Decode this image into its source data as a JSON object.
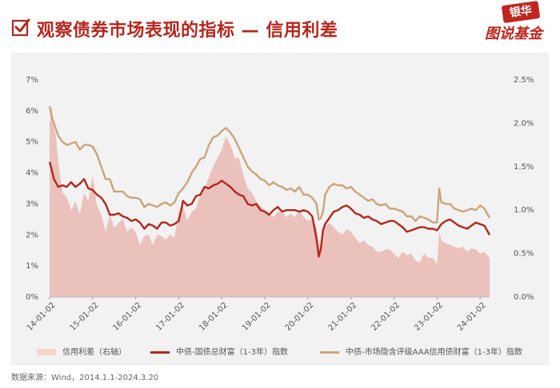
{
  "header": {
    "title": "观察债券市场表现的指标 — 信用利差",
    "logo_top": "银华",
    "logo_bottom": "图说基金"
  },
  "source": "数据来源：Wind，2014.1.1-2024.3.20",
  "colors": {
    "brand": "#b7261c",
    "spread_fill": "#eab8b3",
    "gov_line": "#b5261c",
    "credit_line": "#c9a57a",
    "panel_bg": "#f2f2f2"
  },
  "chart_data": {
    "type": "line",
    "x_labels": [
      "14-01-02",
      "15-01-02",
      "16-01-02",
      "17-01-02",
      "18-01-02",
      "19-01-02",
      "20-01-02",
      "21-01-02",
      "22-01-02",
      "23-01-02",
      "24-01-02"
    ],
    "x_range": [
      2014.0,
      2024.22
    ],
    "y_left": {
      "ticks": [
        "0%",
        "1%",
        "2%",
        "3%",
        "4%",
        "5%",
        "6%",
        "7%"
      ],
      "range": [
        0,
        7
      ]
    },
    "y_right": {
      "ticks": [
        "0.0%",
        "0.5%",
        "1.0%",
        "1.5%",
        "2.0%",
        "2.5%"
      ],
      "range": [
        0,
        2.5
      ]
    },
    "grid": false,
    "legend_position": "bottom",
    "series": [
      {
        "name": "信用利差（右轴）",
        "kind": "area",
        "axis": "right",
        "x": [
          2014.0,
          2014.05,
          2014.1,
          2014.15,
          2014.2,
          2014.3,
          2014.4,
          2014.5,
          2014.6,
          2014.7,
          2014.8,
          2014.9,
          2015.0,
          2015.1,
          2015.2,
          2015.3,
          2015.4,
          2015.5,
          2015.6,
          2015.7,
          2015.8,
          2015.9,
          2016.0,
          2016.1,
          2016.2,
          2016.3,
          2016.4,
          2016.5,
          2016.6,
          2016.7,
          2016.8,
          2016.9,
          2017.0,
          2017.1,
          2017.2,
          2017.3,
          2017.4,
          2017.5,
          2017.6,
          2017.7,
          2017.8,
          2017.9,
          2018.0,
          2018.1,
          2018.2,
          2018.3,
          2018.4,
          2018.5,
          2018.6,
          2018.7,
          2018.8,
          2018.9,
          2019.0,
          2019.1,
          2019.2,
          2019.3,
          2019.4,
          2019.5,
          2019.6,
          2019.7,
          2019.8,
          2019.9,
          2020.0,
          2020.1,
          2020.2,
          2020.25,
          2020.3,
          2020.35,
          2020.4,
          2020.5,
          2020.6,
          2020.7,
          2020.8,
          2020.9,
          2021.0,
          2021.1,
          2021.2,
          2021.3,
          2021.4,
          2021.5,
          2021.6,
          2021.7,
          2021.8,
          2021.9,
          2022.0,
          2022.1,
          2022.2,
          2022.3,
          2022.4,
          2022.5,
          2022.6,
          2022.7,
          2022.8,
          2022.9,
          2023.0,
          2023.05,
          2023.1,
          2023.2,
          2023.3,
          2023.4,
          2023.5,
          2023.6,
          2023.7,
          2023.8,
          2023.9,
          2024.0,
          2024.1,
          2024.22
        ],
        "values": [
          2.0,
          2.2,
          1.95,
          1.85,
          1.55,
          1.2,
          1.15,
          1.0,
          1.1,
          0.95,
          1.2,
          1.1,
          1.4,
          1.05,
          0.95,
          0.75,
          0.95,
          0.8,
          0.85,
          0.9,
          0.75,
          0.8,
          0.75,
          0.6,
          0.7,
          0.72,
          0.6,
          0.72,
          0.7,
          0.66,
          0.72,
          0.68,
          0.98,
          1.05,
          0.88,
          0.98,
          1.02,
          1.18,
          1.25,
          1.38,
          1.5,
          1.6,
          1.7,
          1.85,
          1.75,
          1.6,
          1.6,
          1.4,
          1.25,
          1.2,
          1.1,
          1.05,
          1.0,
          0.95,
          0.92,
          0.98,
          0.98,
          0.92,
          0.96,
          0.92,
          1.0,
          0.92,
          0.88,
          0.9,
          0.8,
          0.65,
          0.55,
          0.75,
          0.82,
          0.85,
          0.8,
          0.75,
          0.72,
          0.78,
          0.75,
          0.68,
          0.62,
          0.65,
          0.6,
          0.58,
          0.52,
          0.52,
          0.55,
          0.55,
          0.5,
          0.45,
          0.52,
          0.48,
          0.5,
          0.42,
          0.4,
          0.5,
          0.45,
          0.45,
          0.38,
          0.75,
          0.65,
          0.62,
          0.6,
          0.58,
          0.56,
          0.58,
          0.52,
          0.56,
          0.55,
          0.5,
          0.52,
          0.45
        ]
      },
      {
        "name": "中债-国债总财富（1-3年）指数",
        "kind": "line",
        "axis": "left",
        "x": [
          2014.0,
          2014.05,
          2014.1,
          2014.2,
          2014.3,
          2014.4,
          2014.5,
          2014.6,
          2014.7,
          2014.8,
          2014.9,
          2015.0,
          2015.1,
          2015.2,
          2015.3,
          2015.4,
          2015.5,
          2015.6,
          2015.7,
          2015.8,
          2015.9,
          2016.0,
          2016.1,
          2016.2,
          2016.3,
          2016.4,
          2016.5,
          2016.6,
          2016.7,
          2016.8,
          2016.9,
          2017.0,
          2017.05,
          2017.1,
          2017.2,
          2017.3,
          2017.4,
          2017.5,
          2017.6,
          2017.7,
          2017.8,
          2017.9,
          2018.0,
          2018.1,
          2018.2,
          2018.3,
          2018.4,
          2018.5,
          2018.6,
          2018.7,
          2018.8,
          2018.9,
          2019.0,
          2019.1,
          2019.2,
          2019.3,
          2019.4,
          2019.5,
          2019.6,
          2019.7,
          2019.8,
          2019.9,
          2020.0,
          2020.1,
          2020.15,
          2020.2,
          2020.25,
          2020.3,
          2020.35,
          2020.4,
          2020.5,
          2020.6,
          2020.7,
          2020.8,
          2020.9,
          2021.0,
          2021.1,
          2021.2,
          2021.3,
          2021.4,
          2021.5,
          2021.6,
          2021.7,
          2021.8,
          2021.9,
          2022.0,
          2022.1,
          2022.2,
          2022.3,
          2022.4,
          2022.5,
          2022.6,
          2022.7,
          2022.8,
          2022.9,
          2023.0,
          2023.1,
          2023.2,
          2023.3,
          2023.4,
          2023.5,
          2023.6,
          2023.7,
          2023.8,
          2023.9,
          2024.0,
          2024.1,
          2024.22
        ],
        "values": [
          4.35,
          4.1,
          3.8,
          3.55,
          3.6,
          3.55,
          3.7,
          3.55,
          3.65,
          3.8,
          3.5,
          3.45,
          3.3,
          3.2,
          3.0,
          2.65,
          2.65,
          2.7,
          2.6,
          2.55,
          2.45,
          2.5,
          2.4,
          2.2,
          2.35,
          2.3,
          2.2,
          2.4,
          2.4,
          2.3,
          2.35,
          2.45,
          2.75,
          3.1,
          2.95,
          3.0,
          3.25,
          3.3,
          3.55,
          3.5,
          3.6,
          3.65,
          3.75,
          3.65,
          3.55,
          3.4,
          3.3,
          3.25,
          3.0,
          2.95,
          3.0,
          2.8,
          2.75,
          2.65,
          2.8,
          2.9,
          2.75,
          2.8,
          2.8,
          2.8,
          2.75,
          2.8,
          2.75,
          2.6,
          2.25,
          1.85,
          1.3,
          1.55,
          2.15,
          2.35,
          2.55,
          2.75,
          2.8,
          2.9,
          2.95,
          2.85,
          2.7,
          2.65,
          2.55,
          2.6,
          2.5,
          2.45,
          2.35,
          2.4,
          2.45,
          2.45,
          2.35,
          2.25,
          2.1,
          2.15,
          2.2,
          2.25,
          2.25,
          2.2,
          2.2,
          2.15,
          2.35,
          2.45,
          2.5,
          2.4,
          2.3,
          2.25,
          2.2,
          2.3,
          2.4,
          2.35,
          2.3,
          2.0
        ]
      },
      {
        "name": "中债-市场隐含评级AAA信用债财富（1-3年）指数",
        "kind": "line",
        "axis": "left",
        "x": [
          2014.0,
          2014.05,
          2014.1,
          2014.2,
          2014.3,
          2014.4,
          2014.5,
          2014.6,
          2014.7,
          2014.8,
          2014.9,
          2015.0,
          2015.1,
          2015.2,
          2015.3,
          2015.4,
          2015.5,
          2015.6,
          2015.7,
          2015.8,
          2015.9,
          2016.0,
          2016.1,
          2016.2,
          2016.3,
          2016.4,
          2016.5,
          2016.6,
          2016.7,
          2016.8,
          2016.9,
          2017.0,
          2017.1,
          2017.2,
          2017.3,
          2017.4,
          2017.5,
          2017.6,
          2017.7,
          2017.8,
          2017.9,
          2018.0,
          2018.1,
          2018.2,
          2018.3,
          2018.4,
          2018.5,
          2018.6,
          2018.7,
          2018.8,
          2018.9,
          2019.0,
          2019.1,
          2019.2,
          2019.3,
          2019.4,
          2019.5,
          2019.6,
          2019.7,
          2019.8,
          2019.9,
          2020.0,
          2020.1,
          2020.2,
          2020.25,
          2020.3,
          2020.35,
          2020.4,
          2020.5,
          2020.6,
          2020.7,
          2020.8,
          2020.9,
          2021.0,
          2021.1,
          2021.2,
          2021.3,
          2021.4,
          2021.5,
          2021.6,
          2021.7,
          2021.8,
          2021.9,
          2022.0,
          2022.1,
          2022.2,
          2022.3,
          2022.4,
          2022.5,
          2022.6,
          2022.7,
          2022.8,
          2022.9,
          2023.0,
          2023.05,
          2023.1,
          2023.2,
          2023.3,
          2023.4,
          2023.5,
          2023.6,
          2023.7,
          2023.8,
          2023.9,
          2024.0,
          2024.1,
          2024.22
        ],
        "values": [
          6.15,
          5.8,
          5.6,
          5.2,
          5.0,
          4.9,
          4.95,
          5.0,
          4.75,
          4.9,
          4.9,
          4.85,
          4.6,
          4.2,
          3.8,
          3.8,
          3.4,
          3.4,
          3.4,
          3.25,
          3.2,
          3.2,
          3.15,
          2.9,
          3.0,
          2.95,
          2.9,
          3.0,
          3.05,
          2.95,
          3.05,
          3.35,
          3.5,
          3.7,
          4.0,
          4.2,
          4.45,
          4.5,
          4.9,
          5.15,
          5.2,
          5.35,
          5.45,
          5.3,
          5.1,
          4.8,
          4.5,
          4.2,
          4.05,
          3.95,
          3.8,
          3.75,
          3.6,
          3.7,
          3.6,
          3.55,
          3.45,
          3.5,
          3.4,
          3.55,
          3.3,
          3.3,
          3.2,
          3.0,
          2.5,
          2.55,
          2.75,
          3.3,
          3.55,
          3.65,
          3.6,
          3.6,
          3.5,
          3.55,
          3.4,
          3.3,
          3.2,
          3.1,
          3.15,
          3.0,
          2.95,
          3.0,
          2.85,
          2.85,
          2.8,
          2.75,
          2.6,
          2.6,
          2.45,
          2.6,
          2.55,
          2.5,
          2.4,
          2.4,
          3.5,
          3.05,
          3.0,
          3.0,
          2.85,
          2.8,
          2.75,
          2.8,
          2.85,
          2.8,
          2.95,
          2.85,
          2.55
        ]
      }
    ]
  }
}
